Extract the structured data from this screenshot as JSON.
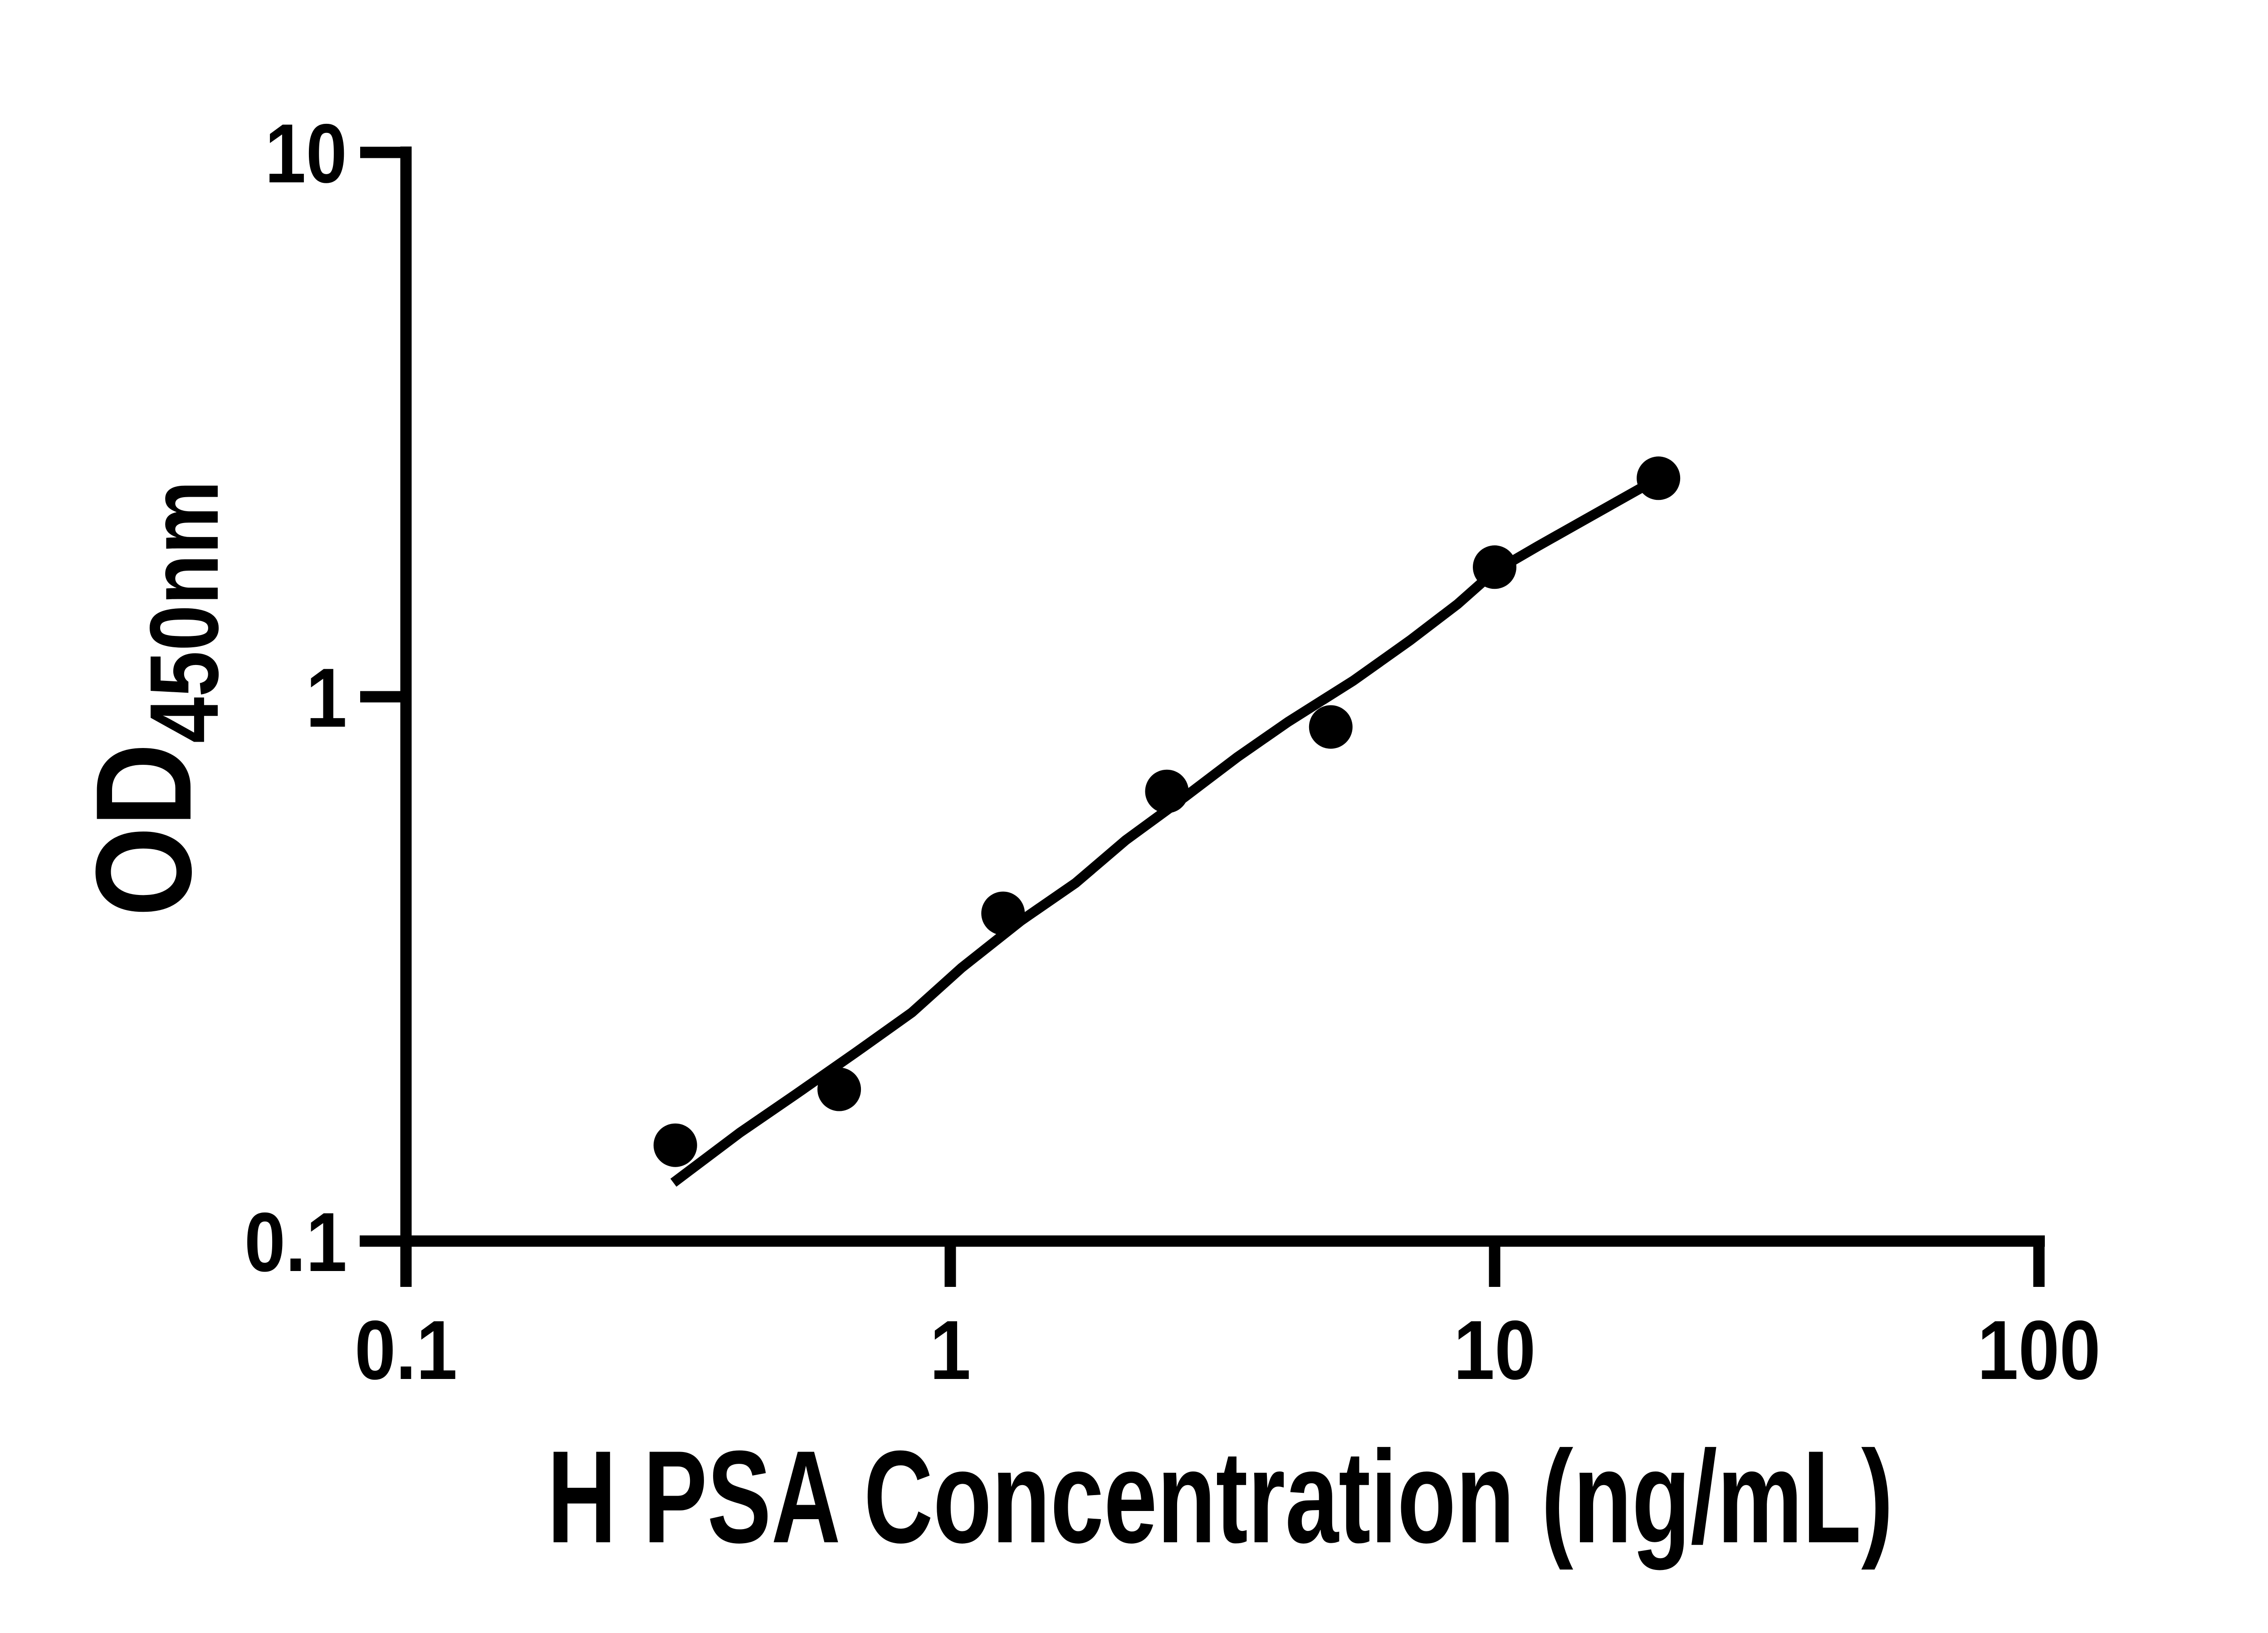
{
  "figure": {
    "background_color": "#ffffff",
    "ink_color": "#000000"
  },
  "chart_data": {
    "type": "scatter",
    "title": "",
    "xlabel": "H PSA Concentration (ng/mL)",
    "ylabel": "OD",
    "ylabel_sub": "450nm",
    "x_scale": "log",
    "y_scale": "log",
    "xlim": [
      0.1,
      100
    ],
    "ylim": [
      0.1,
      10
    ],
    "grid": "off",
    "legend": "none",
    "marker": "filled-circle",
    "x_ticks": [
      {
        "value": 0.1,
        "label": "0.1"
      },
      {
        "value": 1,
        "label": "1"
      },
      {
        "value": 10,
        "label": "10"
      },
      {
        "value": 100,
        "label": "100"
      }
    ],
    "y_ticks": [
      {
        "value": 10,
        "label": "10"
      },
      {
        "value": 1,
        "label": "1"
      },
      {
        "value": 0.1,
        "label": "0.1"
      }
    ],
    "points": [
      {
        "x": 0.3125,
        "y": 0.15
      },
      {
        "x": 0.625,
        "y": 0.19
      },
      {
        "x": 1.25,
        "y": 0.4
      },
      {
        "x": 2.5,
        "y": 0.67
      },
      {
        "x": 5,
        "y": 0.88
      },
      {
        "x": 10,
        "y": 1.73
      },
      {
        "x": 20,
        "y": 2.52
      }
    ],
    "fit_line": [
      [
        0.31,
        0.128
      ],
      [
        0.41,
        0.158
      ],
      [
        0.52,
        0.186
      ],
      [
        0.67,
        0.222
      ],
      [
        0.85,
        0.263
      ],
      [
        1.05,
        0.318
      ],
      [
        1.35,
        0.388
      ],
      [
        1.7,
        0.455
      ],
      [
        2.1,
        0.545
      ],
      [
        2.7,
        0.655
      ],
      [
        3.37,
        0.775
      ],
      [
        4.18,
        0.9
      ],
      [
        5.5,
        1.07
      ],
      [
        7.0,
        1.27
      ],
      [
        8.55,
        1.48
      ],
      [
        10.0,
        1.7
      ],
      [
        12.0,
        1.89
      ],
      [
        14.1,
        2.07
      ],
      [
        17.0,
        2.3
      ],
      [
        20.0,
        2.52
      ]
    ]
  }
}
